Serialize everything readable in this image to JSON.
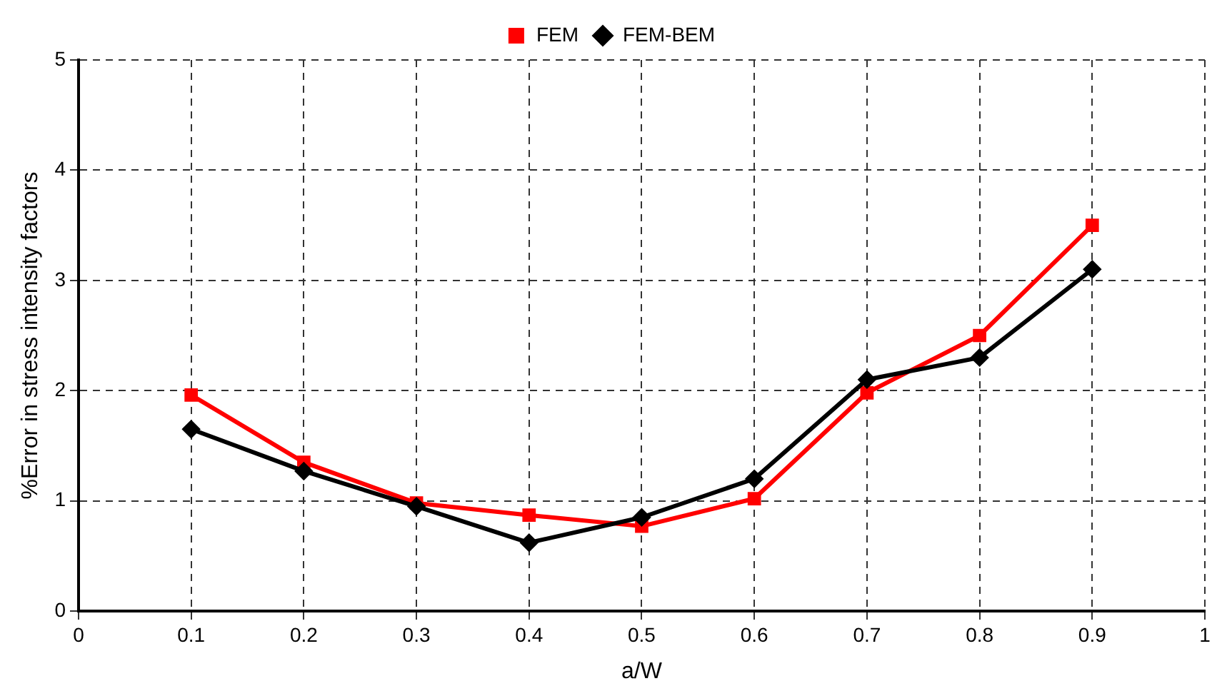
{
  "chart_data": {
    "type": "line",
    "xlabel": "a/W",
    "ylabel": "%Error in stress intensity factors",
    "x": [
      0.1,
      0.2,
      0.3,
      0.4,
      0.5,
      0.6,
      0.7,
      0.8,
      0.9
    ],
    "series": [
      {
        "name": "FEM",
        "color": "#ff0000",
        "marker": "square",
        "values": [
          1.96,
          1.35,
          0.98,
          0.87,
          0.77,
          1.02,
          1.98,
          2.5,
          3.5
        ]
      },
      {
        "name": "FEM-BEM",
        "color": "#000000",
        "marker": "diamond",
        "values": [
          1.65,
          1.27,
          0.95,
          0.62,
          0.85,
          1.2,
          2.1,
          2.3,
          3.1
        ]
      }
    ],
    "xlim": [
      0,
      1
    ],
    "xticks": [
      0,
      0.1,
      0.2,
      0.3,
      0.4,
      0.5,
      0.6,
      0.7,
      0.8,
      0.9,
      1
    ],
    "ylim": [
      0,
      5
    ],
    "yticks": [
      0,
      1,
      2,
      3,
      4,
      5
    ],
    "grid": true,
    "legend": "top",
    "line_style": "solid"
  }
}
